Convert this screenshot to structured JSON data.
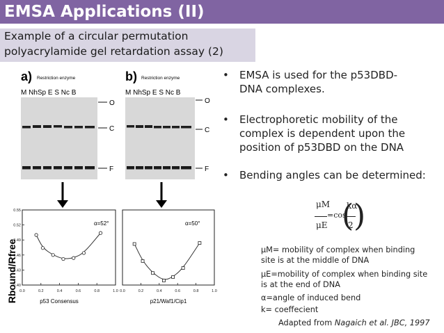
{
  "title": "EMSA Applications (II)",
  "subtitle": {
    "line1": "Example of a circular permutation",
    "line2": "polyacrylamide gel retardation assay (2)"
  },
  "figure": {
    "panel_a": {
      "letter": "a)",
      "enzyme_label": "Restriction enzyme",
      "lanes": "M NhSp  E  S  Nc B"
    },
    "panel_b": {
      "letter": "b)",
      "enzyme_label": "Restriction enzyme",
      "lanes": "M NhSp  E  S  Nc B"
    },
    "band_labels": [
      "O",
      "C",
      "F"
    ],
    "ylabel": "Rbound/Rfree",
    "left_xlabel": "p53 Consensus",
    "right_xlabel": "p21/Waf1/Cip1",
    "left_alpha": "α=52°",
    "right_alpha": "α=50°",
    "y_ticks": [
      "0.55",
      "0.52",
      "0.49",
      "0.46",
      "0.43",
      "0.40"
    ],
    "left_x_ticks": [
      "0.0",
      "0.2",
      "0.4",
      "0.6",
      "0.8",
      "1.0"
    ],
    "right_x_ticks": [
      "0.0",
      "0.2",
      "0.4",
      "0.6",
      "0.8",
      "1.0"
    ]
  },
  "chart_data": [
    {
      "type": "scatter",
      "title": "",
      "xlabel": "p53 Consensus",
      "ylabel": "Rbound/Rfree",
      "xlim": [
        0,
        1
      ],
      "ylim": [
        0.4,
        0.55
      ],
      "x": [
        0.15,
        0.22,
        0.33,
        0.44,
        0.55,
        0.66,
        0.84
      ],
      "y": [
        0.5,
        0.474,
        0.46,
        0.452,
        0.454,
        0.464,
        0.504
      ]
    },
    {
      "type": "scatter",
      "title": "",
      "xlabel": "p21/Waf1/Cip1",
      "ylabel": "Rbound/Rfree",
      "xlim": [
        0,
        1
      ],
      "ylim": [
        0.4,
        0.55
      ],
      "x": [
        0.13,
        0.22,
        0.33,
        0.45,
        0.55,
        0.66,
        0.84
      ],
      "y": [
        0.482,
        0.448,
        0.424,
        0.409,
        0.416,
        0.434,
        0.484
      ]
    }
  ],
  "bullets": [
    {
      "lines": [
        "EMSA is used for the p53DBD-",
        "DNA complexes."
      ]
    },
    {
      "lines": [
        "Electrophoretic mobility of the",
        "complex is dependent upon the",
        "position of p53DBD on the DNA"
      ]
    },
    {
      "lines": [
        "Bending angles can be determined:"
      ]
    }
  ],
  "equation": {
    "num_left": "μM",
    "den_left": "μE",
    "eq": "=cos",
    "num_right": "kα",
    "den_right": "2"
  },
  "definitions": [
    {
      "lines": [
        "μM= mobility of complex when binding",
        "site is at the middle of DNA"
      ]
    },
    {
      "lines": [
        "μE=mobility of complex when binding site",
        "is at the end of DNA"
      ]
    },
    {
      "lines": [
        "α=angle of induced bend"
      ]
    },
    {
      "lines": [
        "k= coeffecient"
      ]
    }
  ],
  "credit": {
    "prefix": "Adapted from ",
    "source": "Nagaich et al. JBC, 1997"
  }
}
